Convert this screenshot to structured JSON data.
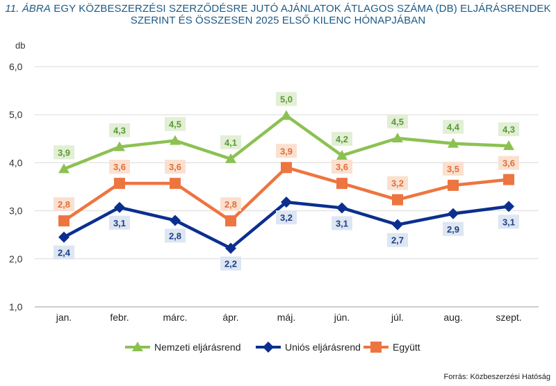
{
  "title": {
    "figure_label": "11. ÁBRA",
    "line1_rest": "EGY KÖZBESZERZÉSI SZERZŐDÉSRE JUTÓ AJÁNLATOK ÁTLAGOS SZÁMA (DB) ELJÁRÁSRENDEK",
    "line2": "SZERINT ÉS ÖSSZESEN 2025 ELSŐ KILENC HÓNAPJÁBAN"
  },
  "source": "Forrás: Közbeszerzési Hatóság",
  "chart_data": {
    "type": "line",
    "ylabel": "db",
    "ylim": [
      1.0,
      6.0
    ],
    "yticks": [
      "1,0",
      "2,0",
      "3,0",
      "4,0",
      "5,0",
      "6,0"
    ],
    "grid": true,
    "legend_position": "bottom",
    "categories": [
      "jan.",
      "febr.",
      "márc.",
      "ápr.",
      "máj.",
      "jún.",
      "júl.",
      "aug.",
      "szept."
    ],
    "series": [
      {
        "name": "Nemzeti eljárásrend",
        "color": "#8cc152",
        "label_bg": "#e2efd6",
        "label_color": "#5a9a32",
        "marker": "triangle",
        "label_position": "above",
        "values": [
          3.87,
          4.33,
          4.46,
          4.08,
          4.98,
          4.15,
          4.51,
          4.4,
          4.35
        ],
        "labels": [
          "3,9",
          "4,3",
          "4,5",
          "4,1",
          "5,0",
          "4,2",
          "4,5",
          "4,4",
          "4,3"
        ]
      },
      {
        "name": "Uniós eljárásrend",
        "color": "#0b2f8f",
        "label_bg": "#dde6f2",
        "label_color": "#1d3f86",
        "marker": "diamond",
        "label_position": "below",
        "values": [
          2.45,
          3.07,
          2.8,
          2.22,
          3.18,
          3.06,
          2.71,
          2.94,
          3.09
        ],
        "labels": [
          "2,4",
          "3,1",
          "2,8",
          "2,2",
          "3,2",
          "3,1",
          "2,7",
          "2,9",
          "3,1"
        ]
      },
      {
        "name": "Együtt",
        "color": "#ed7540",
        "label_bg": "#fbe0d0",
        "label_color": "#e0703a",
        "marker": "square",
        "label_position": "above",
        "values": [
          2.79,
          3.57,
          3.57,
          2.79,
          3.9,
          3.57,
          3.23,
          3.53,
          3.65
        ],
        "labels": [
          "2,8",
          "3,6",
          "3,6",
          "2,8",
          "3,9",
          "3,6",
          "3,2",
          "3,5",
          "3,6"
        ]
      }
    ]
  }
}
